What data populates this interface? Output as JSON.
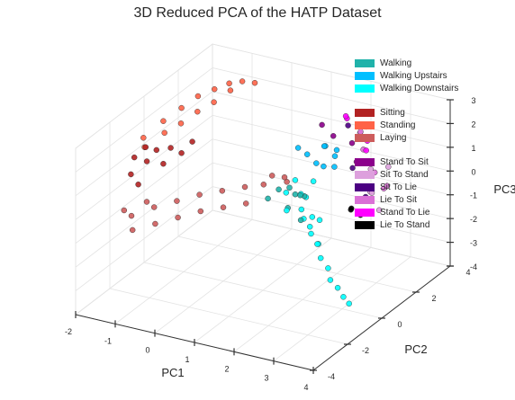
{
  "chart_data": {
    "type": "scatter",
    "projection": "3d",
    "title": "3D Reduced PCA of the HATP Dataset",
    "xlabel": "PC1",
    "ylabel": "PC2",
    "zlabel": "PC3",
    "xlim": [
      -2,
      4
    ],
    "ylim": [
      -4,
      4
    ],
    "zlim": [
      -4,
      3
    ],
    "x_ticks": [
      "-2",
      "-1",
      "0",
      "1",
      "2",
      "3",
      "4"
    ],
    "y_ticks": [
      "-4",
      "-2",
      "0",
      "2",
      "4"
    ],
    "z_ticks": [
      "-4",
      "-3",
      "-2",
      "-1",
      "0",
      "1",
      "2",
      "3"
    ],
    "grid": true,
    "legend_position": "top-right",
    "legend_groups": [
      [
        {
          "name": "Walking",
          "color": "#20b2aa"
        },
        {
          "name": "Walking Upstairs",
          "color": "#00bfff"
        },
        {
          "name": "Walking Downstairs",
          "color": "#00ffff"
        }
      ],
      [
        {
          "name": "Sitting",
          "color": "#b22222"
        },
        {
          "name": "Standing",
          "color": "#ff6347"
        },
        {
          "name": "Laying",
          "color": "#cd5c5c"
        }
      ],
      [
        {
          "name": "Stand To Sit",
          "color": "#8b008b"
        },
        {
          "name": "Sit To Stand",
          "color": "#dda0dd"
        },
        {
          "name": "Sit To Lie",
          "color": "#4b0082"
        },
        {
          "name": "Lie To Sit",
          "color": "#da70d6"
        },
        {
          "name": "Stand To Lie",
          "color": "#ff00ff"
        },
        {
          "name": "Lie To Stand",
          "color": "#000000"
        }
      ]
    ],
    "series": [
      {
        "name": "Standing",
        "color": "#ff6347",
        "points": [
          [
            -1.8,
            -0.5,
            1.6
          ],
          [
            -1.6,
            0.2,
            2.0
          ],
          [
            -1.4,
            0.8,
            2.3
          ],
          [
            -1.2,
            1.3,
            2.6
          ],
          [
            -1.0,
            1.8,
            2.7
          ],
          [
            -0.8,
            2.2,
            2.8
          ],
          [
            -0.6,
            2.5,
            2.8
          ],
          [
            -1.7,
            0.5,
            1.3
          ],
          [
            -1.3,
            1.5,
            1.8
          ],
          [
            -0.9,
            2.5,
            2.3
          ],
          [
            -0.5,
            3.0,
            2.5
          ],
          [
            -1.9,
            -0.2,
            1.0
          ],
          [
            -1.5,
            1.0,
            1.5
          ],
          [
            -1.1,
            2.0,
            2.0
          ]
        ]
      },
      {
        "name": "Sitting",
        "color": "#b22222",
        "points": [
          [
            -1.9,
            -0.8,
            0.9
          ],
          [
            -1.8,
            -0.3,
            0.5
          ],
          [
            -1.6,
            0.2,
            0.2
          ],
          [
            -1.7,
            -0.6,
            1.3
          ],
          [
            -1.5,
            0.4,
            0.8
          ],
          [
            -1.9,
            -1.0,
            0.3
          ],
          [
            -1.4,
            0.8,
            0.4
          ],
          [
            -1.6,
            -0.2,
            1.0
          ],
          [
            -1.8,
            -0.8,
            -0.2
          ],
          [
            -1.3,
            1.2,
            0.7
          ]
        ]
      },
      {
        "name": "Laying",
        "color": "#cd5c5c",
        "points": [
          [
            -1.8,
            -1.2,
            -1.3
          ],
          [
            -1.4,
            -0.8,
            -1.0
          ],
          [
            -1.0,
            -0.4,
            -0.8
          ],
          [
            -0.6,
            0.0,
            -0.6
          ],
          [
            -0.2,
            0.4,
            -0.5
          ],
          [
            0.2,
            0.8,
            -0.4
          ],
          [
            0.5,
            1.2,
            -0.4
          ],
          [
            -1.6,
            -1.6,
            -1.6
          ],
          [
            -1.2,
            -1.2,
            -1.4
          ],
          [
            -0.8,
            -0.8,
            -1.2
          ],
          [
            -0.4,
            -0.4,
            -1.0
          ],
          [
            0.0,
            0.0,
            -0.9
          ],
          [
            0.4,
            0.4,
            -0.8
          ],
          [
            -1.9,
            -1.4,
            -1.0
          ],
          [
            -1.5,
            -1.0,
            -0.7
          ],
          [
            0.8,
            1.0,
            0.2
          ],
          [
            1.2,
            0.8,
            0.4
          ],
          [
            1.0,
            1.4,
            -0.2
          ]
        ]
      },
      {
        "name": "Walking",
        "color": "#20b2aa",
        "points": [
          [
            1.4,
            0.0,
            0.4
          ],
          [
            1.6,
            0.5,
            0.0
          ],
          [
            1.8,
            -0.3,
            0.8
          ],
          [
            1.5,
            0.3,
            -0.5
          ],
          [
            1.9,
            0.1,
            0.3
          ],
          [
            1.3,
            -0.4,
            0.2
          ],
          [
            1.7,
            0.8,
            -0.2
          ],
          [
            2.0,
            -0.1,
            -0.6
          ]
        ]
      },
      {
        "name": "Walking Upstairs",
        "color": "#00bfff",
        "points": [
          [
            1.6,
            1.2,
            1.3
          ],
          [
            1.9,
            1.5,
            1.6
          ],
          [
            2.1,
            1.0,
            1.1
          ],
          [
            1.8,
            1.8,
            1.4
          ],
          [
            2.2,
            1.4,
            0.9
          ],
          [
            1.5,
            0.9,
            1.7
          ],
          [
            2.0,
            2.0,
            1.2
          ],
          [
            2.3,
            1.2,
            1.5
          ],
          [
            1.7,
            1.5,
            0.8
          ]
        ]
      },
      {
        "name": "Walking Downstairs",
        "color": "#00ffff",
        "points": [
          [
            1.6,
            0.5,
            0.6
          ],
          [
            1.7,
            0.6,
            0.0
          ],
          [
            1.8,
            0.4,
            -0.5
          ],
          [
            1.9,
            0.8,
            -1.0
          ],
          [
            2.0,
            0.5,
            -1.5
          ],
          [
            2.1,
            0.7,
            -2.0
          ],
          [
            2.2,
            0.6,
            -2.5
          ],
          [
            2.3,
            0.8,
            -3.0
          ],
          [
            2.4,
            0.7,
            -3.4
          ],
          [
            2.5,
            0.9,
            -3.8
          ],
          [
            1.5,
            0.2,
            0.2
          ],
          [
            1.7,
            0.9,
            -0.3
          ],
          [
            1.9,
            0.3,
            -0.8
          ],
          [
            2.0,
            1.0,
            -1.2
          ],
          [
            2.2,
            0.4,
            -1.8
          ],
          [
            1.6,
            0.0,
            -0.4
          ],
          [
            1.8,
            1.1,
            0.3
          ],
          [
            2.1,
            0.2,
            -1.0
          ],
          [
            2.6,
            1.0,
            -4.2
          ],
          [
            2.7,
            1.1,
            -4.5
          ]
        ]
      },
      {
        "name": "Stand To Sit",
        "color": "#8b008b",
        "points": [
          [
            2.0,
            1.8,
            1.9
          ],
          [
            2.3,
            2.2,
            1.5
          ],
          [
            1.8,
            1.6,
            2.4
          ],
          [
            2.5,
            2.0,
            0.9
          ]
        ]
      },
      {
        "name": "Sit To Stand",
        "color": "#dda0dd",
        "points": [
          [
            2.6,
            2.6,
            0.3
          ],
          [
            2.8,
            2.2,
            -0.4
          ],
          [
            2.5,
            2.8,
            -0.8
          ],
          [
            2.9,
            2.4,
            -1.2
          ],
          [
            2.2,
            2.9,
            1.5
          ],
          [
            3.0,
            2.7,
            0.5
          ]
        ]
      },
      {
        "name": "Sit To Lie",
        "color": "#4b0082",
        "points": [
          [
            2.2,
            2.2,
            2.2
          ],
          [
            2.6,
            2.3,
            -0.7
          ],
          [
            2.4,
            2.0,
            0.6
          ]
        ]
      },
      {
        "name": "Lie To Sit",
        "color": "#da70d6",
        "points": [
          [
            2.5,
            2.4,
            1.2
          ],
          [
            2.7,
            2.6,
            0.2
          ],
          [
            2.3,
            2.7,
            1.7
          ],
          [
            2.8,
            2.9,
            -0.6
          ],
          [
            3.1,
            2.4,
            -0.1
          ]
        ]
      },
      {
        "name": "Stand To Lie",
        "color": "#ff00ff",
        "points": [
          [
            2.3,
            2.6,
            2.0
          ],
          [
            2.1,
            2.3,
            2.5
          ],
          [
            2.6,
            2.4,
            1.6
          ],
          [
            2.4,
            2.8,
            1.9
          ],
          [
            2.7,
            2.1,
            1.4
          ],
          [
            2.0,
            2.6,
            2.2
          ]
        ]
      },
      {
        "name": "Lie To Stand",
        "color": "#000000",
        "points": [
          [
            2.4,
            1.9,
            -1.1
          ],
          [
            2.6,
            2.0,
            -1.3
          ],
          [
            2.5,
            1.7,
            -0.9
          ]
        ]
      }
    ]
  }
}
